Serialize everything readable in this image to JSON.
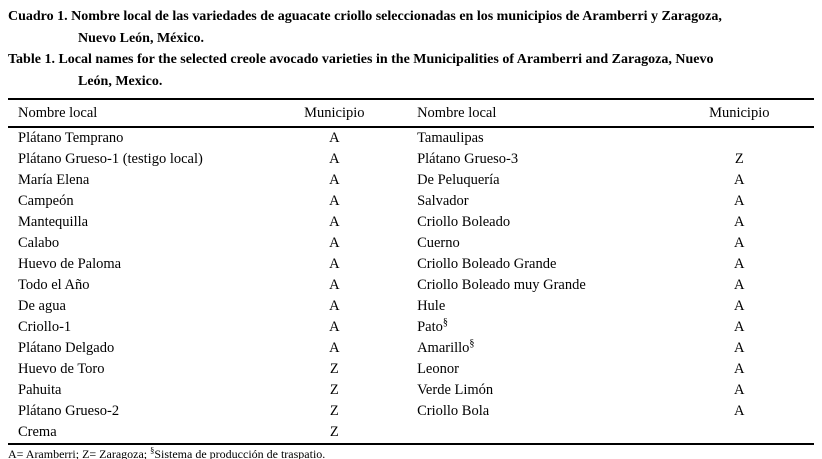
{
  "page": {
    "background": "#ffffff",
    "text_color": "#000000",
    "rule_color": "#000000"
  },
  "captions": {
    "spanish_lines": [
      "Cuadro 1. Nombre local de las variedades de aguacate criollo seleccionadas en los municipios de Aramberri y Zaragoza,",
      "Nuevo León, México."
    ],
    "english_lines": [
      "Table 1. Local names for the selected creole avocado varieties in the Municipalities of Aramberri and Zaragoza, Nuevo",
      "León, Mexico."
    ]
  },
  "table": {
    "headers": [
      "Nombre local",
      "Municipio",
      "Nombre local",
      "Municipio"
    ],
    "rows": [
      [
        "Plátano Temprano",
        "A",
        "Tamaulipas",
        ""
      ],
      [
        "Plátano Grueso-1 (testigo local)",
        "A",
        "Plátano Grueso-3",
        "Z"
      ],
      [
        "María Elena",
        "A",
        "De Peluquería",
        "A"
      ],
      [
        "Campeón",
        "A",
        "Salvador",
        "A"
      ],
      [
        "Mantequilla",
        "A",
        "Criollo Boleado",
        "A"
      ],
      [
        "Calabo",
        "A",
        "Cuerno",
        "A"
      ],
      [
        "Huevo de Paloma",
        "A",
        "Criollo Boleado Grande",
        "A"
      ],
      [
        "Todo el Año",
        "A",
        "Criollo Boleado muy Grande",
        "A"
      ],
      [
        "De agua",
        "A",
        "Hule",
        "A"
      ],
      [
        "Criollo-1",
        "A",
        "Pato§",
        "A"
      ],
      [
        "Plátano Delgado",
        "A",
        "Amarillo§",
        "A"
      ],
      [
        "Huevo de Toro",
        "Z",
        "Leonor",
        "A"
      ],
      [
        "Pahuita",
        "Z",
        "Verde Limón",
        "A"
      ],
      [
        "Plátano Grueso-2",
        "Z",
        "Criollo Bola",
        "A"
      ],
      [
        "Crema",
        "Z",
        "",
        ""
      ]
    ]
  },
  "footnote": {
    "prefix": "A= Aramberri; Z= Zaragoza; ",
    "marker": "§",
    "suffix": "Sistema de producción de traspatio."
  }
}
